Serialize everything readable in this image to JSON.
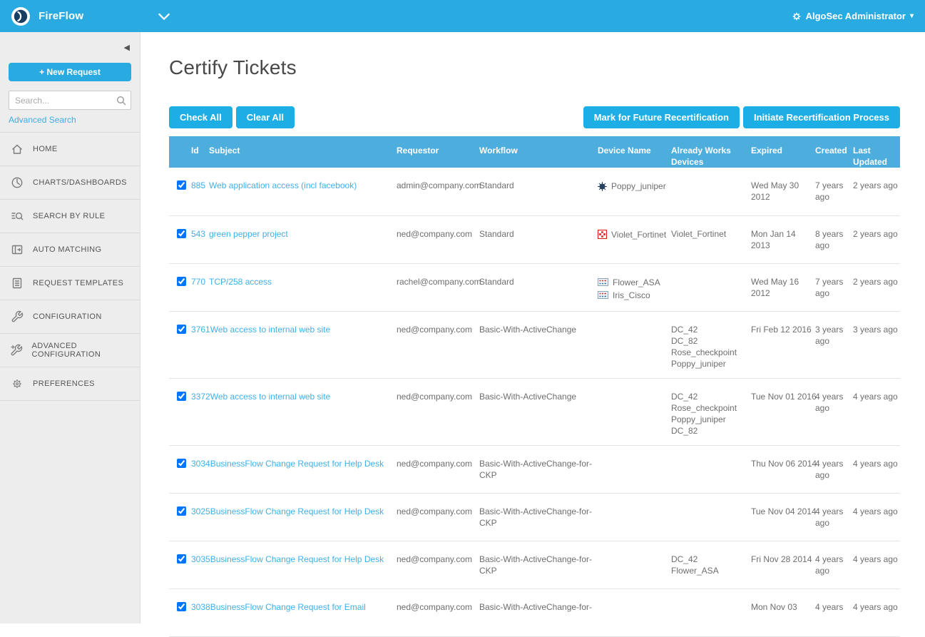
{
  "colors": {
    "topbar_blue": "#29abe2",
    "table_header_blue": "#4daddd",
    "button_blue": "#1caee4",
    "link_blue": "#3fb0e8",
    "sidebar_gray": "#ededed"
  },
  "topbar": {
    "brand": "FireFlow",
    "user_menu_label": "AlgoSec Administrator"
  },
  "sidebar": {
    "new_request_label": "+ New Request",
    "search_placeholder": "Search...",
    "advanced_search_label": "Advanced Search",
    "items": [
      {
        "label": "HOME",
        "icon": "home-icon"
      },
      {
        "label": "CHARTS/DASHBOARDS",
        "icon": "charts-dashboards-icon"
      },
      {
        "label": "SEARCH BY RULE",
        "icon": "search-by-rule-icon"
      },
      {
        "label": "AUTO MATCHING",
        "icon": "auto-matching-icon"
      },
      {
        "label": "REQUEST TEMPLATES",
        "icon": "request-templates-icon"
      },
      {
        "label": "CONFIGURATION",
        "icon": "wrench-icon"
      },
      {
        "label": "ADVANCED CONFIGURATION",
        "icon": "advanced-wrench-icon"
      },
      {
        "label": "PREFERENCES",
        "icon": "gear-icon"
      }
    ]
  },
  "main": {
    "title": "Certify Tickets",
    "buttons": {
      "check_all": "Check All",
      "clear_all": "Clear All",
      "mark_future": "Mark for Future Recertification",
      "initiate": "Initiate Recertification Process"
    },
    "table": {
      "headers": [
        "Id",
        "Subject",
        "Requestor",
        "Workflow",
        "Device Name",
        "Already Works Devices",
        "Expired",
        "Created",
        "Last Updated"
      ],
      "rows": [
        {
          "id": "885",
          "subject": "Web application access (incl facebook)",
          "requestor": "admin@company.com",
          "workflow": "Standard",
          "devices": [
            {
              "name": "Poppy_juniper",
              "icon": "juniper-device-icon"
            }
          ],
          "already_works": [],
          "expired_lines": [
            "Wed May 30",
            "2012"
          ],
          "created": "7 years ago",
          "last_updated": "2 years ago",
          "checked": true
        },
        {
          "id": "543",
          "subject": "green pepper project",
          "requestor": "ned@company.com",
          "workflow": "Standard",
          "devices": [
            {
              "name": "Violet_Fortinet",
              "icon": "fortinet-device-icon"
            }
          ],
          "already_works": [
            "Violet_Fortinet"
          ],
          "expired_lines": [
            "Mon Jan 14",
            "2013"
          ],
          "created": "8 years ago",
          "last_updated": "2 years ago",
          "checked": true
        },
        {
          "id": "770",
          "subject": "TCP/258 access",
          "requestor": "rachel@company.com",
          "workflow": "Standard",
          "devices": [
            {
              "name": "Flower_ASA",
              "icon": "cisco-device-icon"
            },
            {
              "name": "Iris_Cisco",
              "icon": "cisco-device-icon"
            }
          ],
          "already_works": [],
          "expired_lines": [
            "Wed May 16",
            "2012"
          ],
          "created": "7 years ago",
          "last_updated": "2 years ago",
          "checked": true
        },
        {
          "id": "3761",
          "subject": "Web access to internal web site",
          "requestor": "ned@company.com",
          "workflow": "Basic-With-ActiveChange",
          "devices": [],
          "already_works": [
            "DC_42",
            "DC_82",
            "Rose_checkpoint",
            "Poppy_juniper"
          ],
          "expired_lines": [
            "Fri Feb 12 2016"
          ],
          "created": "3 years ago",
          "last_updated": "3 years ago",
          "checked": true
        },
        {
          "id": "3372",
          "subject": "Web access to internal web site",
          "requestor": "ned@company.com",
          "workflow": "Basic-With-ActiveChange",
          "devices": [],
          "already_works": [
            "DC_42",
            "Rose_checkpoint",
            "Poppy_juniper",
            "DC_82"
          ],
          "expired_lines": [
            "Tue Nov 01 2016"
          ],
          "created": "4 years ago",
          "last_updated": "4 years ago",
          "checked": true
        },
        {
          "id": "3034",
          "subject": "BusinessFlow Change Request for Help Desk",
          "requestor": "ned@company.com",
          "workflow": "Basic-With-ActiveChange-for-CKP",
          "devices": [],
          "already_works": [],
          "expired_lines": [
            "Thu Nov 06 2014"
          ],
          "created": "4 years ago",
          "last_updated": "4 years ago",
          "checked": true
        },
        {
          "id": "3025",
          "subject": "BusinessFlow Change Request for Help Desk",
          "requestor": "ned@company.com",
          "workflow": "Basic-With-ActiveChange-for-CKP",
          "devices": [],
          "already_works": [],
          "expired_lines": [
            "Tue Nov 04 2014"
          ],
          "created": "4 years ago",
          "last_updated": "4 years ago",
          "checked": true
        },
        {
          "id": "3035",
          "subject": "BusinessFlow Change Request for Help Desk",
          "requestor": "ned@company.com",
          "workflow": "Basic-With-ActiveChange-for-CKP",
          "devices": [],
          "already_works": [
            "DC_42",
            "Flower_ASA"
          ],
          "expired_lines": [
            "Fri Nov 28 2014"
          ],
          "created": "4 years ago",
          "last_updated": "4 years ago",
          "checked": true
        },
        {
          "id": "3038",
          "subject": "BusinessFlow Change Request for Email",
          "requestor": "ned@company.com",
          "workflow": "Basic-With-ActiveChange-for-",
          "devices": [],
          "already_works": [],
          "expired_lines": [
            "Mon Nov 03"
          ],
          "created": "4 years",
          "last_updated": "4 years ago",
          "checked": true
        }
      ]
    }
  }
}
